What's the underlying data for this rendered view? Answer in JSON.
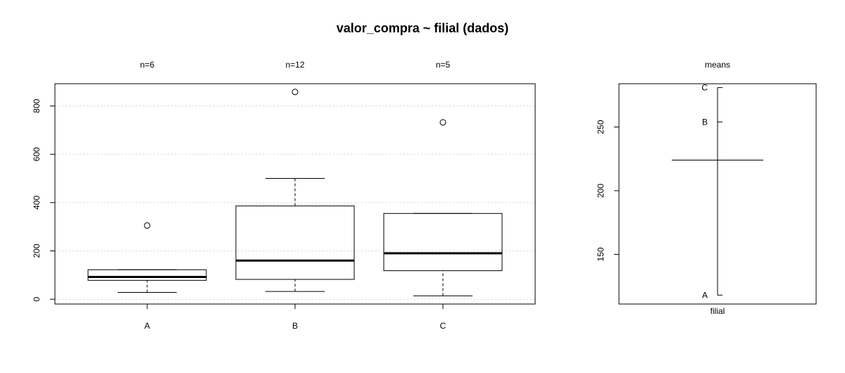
{
  "title": "valor_compra ~ filial (dados)",
  "chart_data": [
    {
      "type": "box",
      "categories": [
        "A",
        "B",
        "C"
      ],
      "counts_labels": [
        "n=6",
        "n=12",
        "n=5"
      ],
      "boxes": [
        {
          "name": "A",
          "whisker_low": 28,
          "q1": 78,
          "median": 92,
          "q3": 122,
          "whisker_high": 122,
          "outliers": [
            305
          ]
        },
        {
          "name": "B",
          "whisker_low": 32,
          "q1": 82,
          "median": 160,
          "q3": 386,
          "whisker_high": 500,
          "outliers": [
            858
          ]
        },
        {
          "name": "C",
          "whisker_low": 14,
          "q1": 118,
          "median": 190,
          "q3": 355,
          "whisker_high": 355,
          "outliers": [
            732
          ]
        }
      ],
      "yticks": [
        "0",
        "200",
        "400",
        "600",
        "800"
      ],
      "ylim": [
        -20,
        892
      ],
      "grid": "horizontal-dotted"
    },
    {
      "type": "means",
      "label": "means",
      "xlabel": "filial",
      "points": [
        {
          "name": "A",
          "value": 118
        },
        {
          "name": "B",
          "value": 254
        },
        {
          "name": "C",
          "value": 281
        }
      ],
      "grand_mean": 224,
      "yticks": [
        "150",
        "200",
        "250"
      ],
      "ylim": [
        111,
        284
      ]
    }
  ]
}
